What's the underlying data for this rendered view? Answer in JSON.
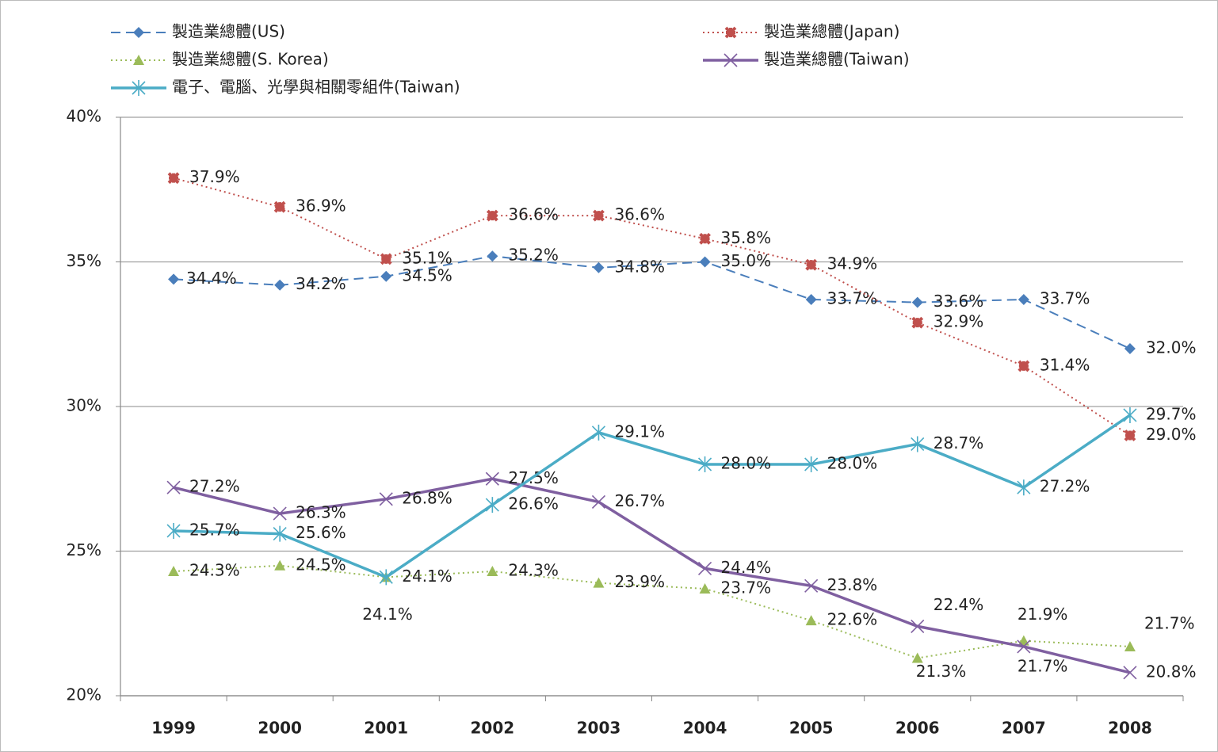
{
  "chart_data": {
    "type": "line",
    "categories": [
      "1999",
      "2000",
      "2001",
      "2002",
      "2003",
      "2004",
      "2005",
      "2006",
      "2007",
      "2008"
    ],
    "ylim": [
      20,
      40
    ],
    "yticks": [
      {
        "value": 20,
        "label": "20%"
      },
      {
        "value": 25,
        "label": "25%"
      },
      {
        "value": 30,
        "label": "30%"
      },
      {
        "value": 35,
        "label": "35%"
      },
      {
        "value": 40,
        "label": "40%"
      }
    ],
    "grid": true,
    "series": [
      {
        "name": "製造業總體(US)",
        "color": "#4a7ebb",
        "dash": "dashed",
        "marker": "diamond",
        "values": [
          34.4,
          34.2,
          34.5,
          35.2,
          34.8,
          35.0,
          33.7,
          33.6,
          33.7,
          32.0
        ],
        "value_labels": [
          "34.4%",
          "34.2%",
          "34.5%",
          "35.2%",
          "34.8%",
          "35.0%",
          "33.7%",
          "33.6%",
          "33.7%",
          "32.0%"
        ]
      },
      {
        "name": "製造業總體(Japan)",
        "color": "#c0504d",
        "dash": "dotted",
        "marker": "square-x",
        "values": [
          37.9,
          36.9,
          35.1,
          36.6,
          36.6,
          35.8,
          34.9,
          32.9,
          31.4,
          29.0
        ],
        "value_labels": [
          "37.9%",
          "36.9%",
          "35.1%",
          "36.6%",
          "36.6%",
          "35.8%",
          "34.9%",
          "32.9%",
          "31.4%",
          "29.0%"
        ]
      },
      {
        "name": "製造業總體(S. Korea)",
        "color": "#9bbb59",
        "dash": "dotted",
        "marker": "triangle",
        "values": [
          24.3,
          24.5,
          24.1,
          24.3,
          23.9,
          23.7,
          22.6,
          21.3,
          21.9,
          21.7
        ],
        "value_labels": [
          "24.3%",
          "24.5%",
          "24.1%",
          "24.3%",
          "23.9%",
          "23.7%",
          "22.6%",
          "21.3%",
          "21.9%",
          "21.7%"
        ]
      },
      {
        "name": "製造業總體(Taiwan)",
        "color": "#7f5fa0",
        "dash": "solid",
        "marker": "x",
        "values": [
          27.2,
          26.3,
          26.8,
          27.5,
          26.7,
          24.4,
          23.8,
          22.4,
          21.7,
          20.8
        ],
        "value_labels": [
          "27.2%",
          "26.3%",
          "26.8%",
          "27.5%",
          "26.7%",
          "24.4%",
          "23.8%",
          "22.4%",
          "21.7%",
          "20.8%"
        ]
      },
      {
        "name": "電子、電腦、光學與相關零組件(Taiwan)",
        "color": "#4bacc6",
        "dash": "solid",
        "marker": "asterisk",
        "values": [
          25.7,
          25.6,
          24.1,
          26.6,
          29.1,
          28.0,
          28.0,
          28.7,
          27.2,
          29.7
        ],
        "value_labels": [
          "25.7%",
          "25.6%",
          "24.1%",
          "26.6%",
          "29.1%",
          "28.0%",
          "28.0%",
          "28.7%",
          "27.2%",
          "29.7%"
        ]
      }
    ]
  }
}
